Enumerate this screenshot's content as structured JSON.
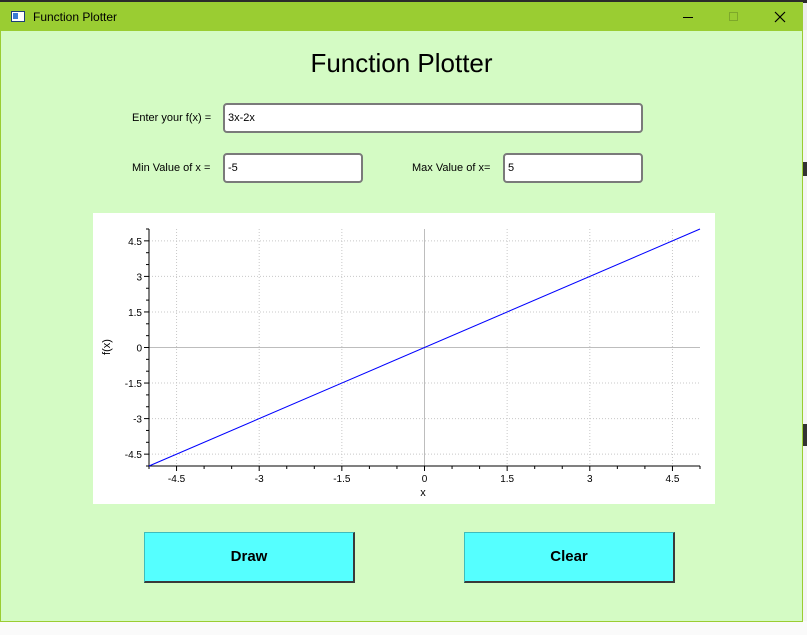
{
  "window": {
    "title": "Function Plotter"
  },
  "heading": "Function Plotter",
  "form": {
    "fx_label": "Enter your f(x) =",
    "fx_value": "3x-2x",
    "min_label": "Min Value of x =",
    "min_value": "-5",
    "max_label": "Max Value of x=",
    "max_value": "5"
  },
  "buttons": {
    "draw": "Draw",
    "clear": "Clear"
  },
  "chart_data": {
    "type": "line",
    "title": "",
    "xlabel": "x",
    "ylabel": "f(x)",
    "xlim": [
      -5,
      5
    ],
    "ylim": [
      -5,
      5
    ],
    "xticks": [
      -4.5,
      -3,
      -1.5,
      0,
      1.5,
      3,
      4.5
    ],
    "yticks": [
      4.5,
      3,
      1.5,
      0,
      -1.5,
      -3,
      -4.5
    ],
    "xtick_labels": [
      "-4.5",
      "-3",
      "-1.5",
      "0",
      "1.5",
      "3",
      "4.5"
    ],
    "ytick_labels": [
      "4.5",
      "3",
      "1.5",
      "0",
      "-1.5",
      "-3",
      "-4.5"
    ],
    "grid": true,
    "series": [
      {
        "x": [
          -5,
          5
        ],
        "y": [
          -5,
          5
        ],
        "color": "#0000ff"
      }
    ]
  },
  "colors": {
    "titlebar": "#9acd32",
    "window_bg": "#d4fbc4",
    "button_bg": "#55ffff",
    "line": "#0000ff"
  }
}
